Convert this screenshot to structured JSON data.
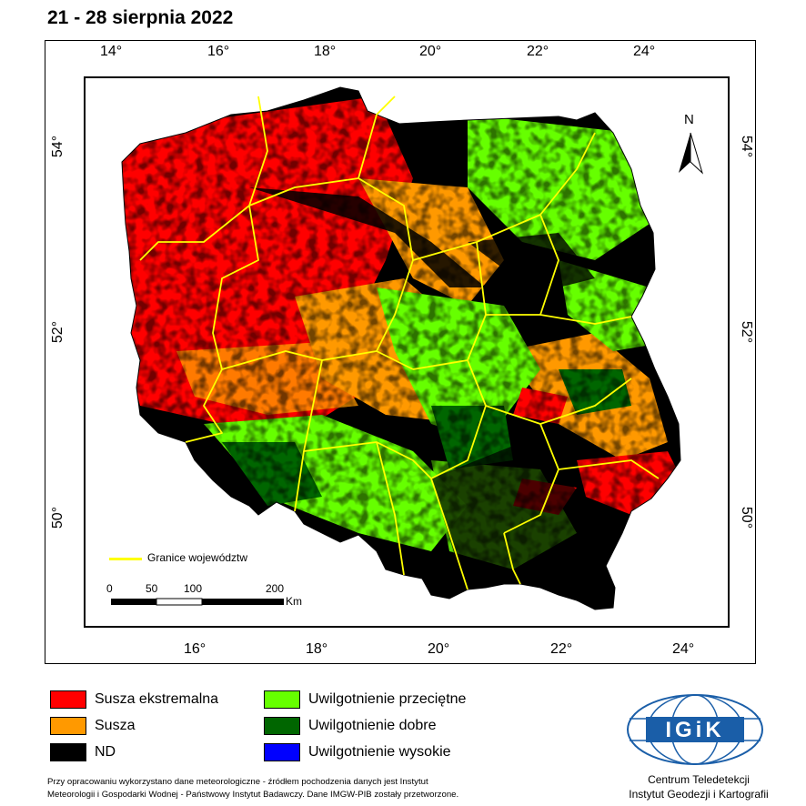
{
  "title": "21 - 28 sierpnia 2022",
  "top_ticks": [
    "14°",
    "16°",
    "18°",
    "20°",
    "22°",
    "24°"
  ],
  "bottom_ticks": [
    "16°",
    "18°",
    "20°",
    "22°",
    "24°"
  ],
  "left_ticks": [
    "54°",
    "52°",
    "50°"
  ],
  "right_ticks": [
    "54°",
    "52°",
    "50°"
  ],
  "north_label": "N",
  "boundary_legend": "Granice województw",
  "scale_bar": {
    "labels": [
      "0",
      "50",
      "100",
      "200"
    ],
    "unit": "Km"
  },
  "legend": [
    {
      "label": "Susza ekstremalna",
      "color": "#ff0000"
    },
    {
      "label": "Susza",
      "color": "#ff9900"
    },
    {
      "label": "ND",
      "color": "#000000"
    },
    {
      "label": "Uwilgotnienie przeciętne",
      "color": "#66ff00"
    },
    {
      "label": "Uwilgotnienie dobre",
      "color": "#006600"
    },
    {
      "label": "Uwilgotnienie wysokie",
      "color": "#0000ff"
    }
  ],
  "footnote": [
    "Przy opracowaniu wykorzystano dane meteorologiczne - źródłem pochodzenia danych jest Instytut",
    "Meteorologii i Gospodarki Wodnej - Państwowy Instytut Badawczy. Dane IMGW-PIB zostały przetworzone."
  ],
  "logo_text": "IGiK",
  "institution": [
    "Centrum Teledetekcji",
    "Instytut Geodezji i Kartografii"
  ]
}
